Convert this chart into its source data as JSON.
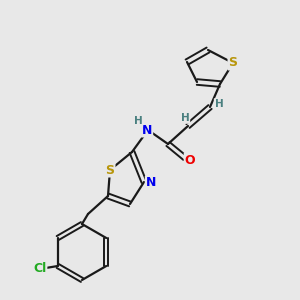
{
  "background_color": "#e8e8e8",
  "bond_color": "#1a1a1a",
  "atom_colors": {
    "S": "#b8960c",
    "N": "#0000ee",
    "O": "#ee0000",
    "Cl": "#22aa22",
    "H": "#4a8080",
    "C": "#1a1a1a"
  },
  "figsize": [
    3.0,
    3.0
  ],
  "dpi": 100
}
